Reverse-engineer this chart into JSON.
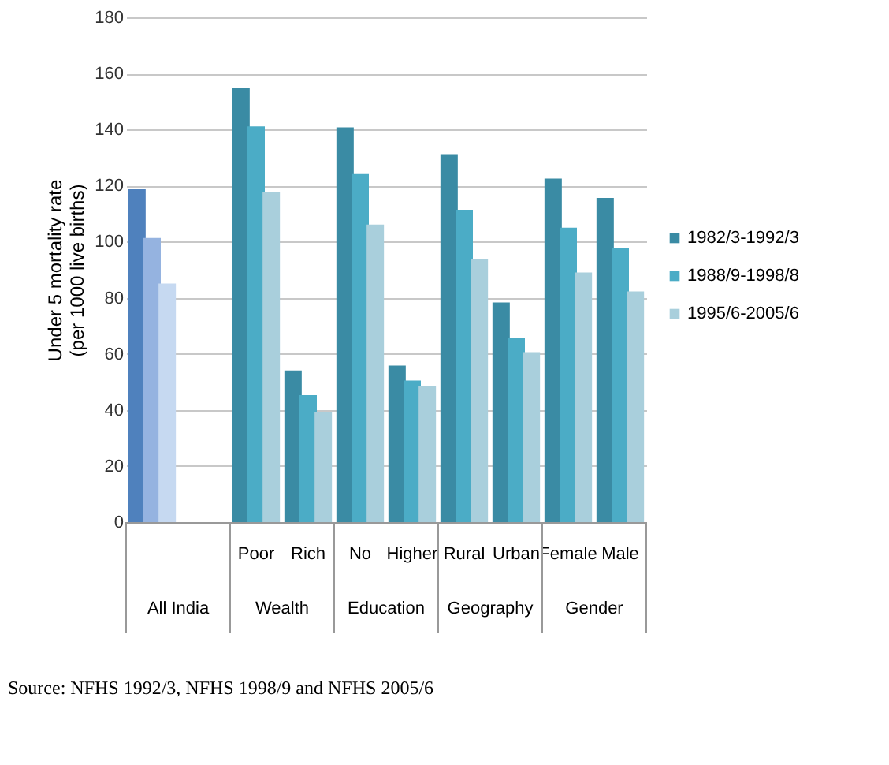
{
  "chart_data": {
    "type": "bar",
    "ylabel": "Under 5 mortality rate\n(per 1000 live births)",
    "categories": [
      null,
      null,
      "Poor",
      "Rich",
      "No",
      "Higher",
      "Rural",
      "Urban",
      "Female",
      "Male"
    ],
    "series": [
      {
        "name": "1982/3-1992/3",
        "color": "#3a8ba4",
        "colors": [
          "#4f81bd",
          null,
          "#3a8ba4",
          "#3a8ba4",
          "#3a8ba4",
          "#3a8ba4",
          "#3a8ba4",
          "#3a8ba4",
          "#3a8ba4",
          "#3a8ba4"
        ],
        "values": [
          118.7,
          null,
          154.7,
          54.1,
          140.8,
          55.8,
          131.2,
          78.3,
          122.5,
          115.6
        ]
      },
      {
        "name": "1988/9-1998/8",
        "color": "#4bacc6",
        "colors": [
          "#95b3e0",
          null,
          "#4bacc6",
          "#4bacc6",
          "#4bacc6",
          "#4bacc6",
          "#4bacc6",
          "#4bacc6",
          "#4bacc6",
          "#4bacc6"
        ],
        "values": [
          101.3,
          null,
          141.1,
          45.3,
          124.4,
          50.5,
          111.4,
          65.5,
          105.0,
          97.9
        ]
      },
      {
        "name": "1995/6-2005/6",
        "color": "#a9cfdc",
        "colors": [
          "#c6d9f1",
          null,
          "#a9cfdc",
          "#a9cfdc",
          "#a9cfdc",
          "#a9cfdc",
          "#a9cfdc",
          "#a9cfdc",
          "#a9cfdc",
          "#a9cfdc"
        ],
        "values": [
          85.1,
          null,
          117.7,
          39.4,
          106.1,
          48.6,
          93.9,
          60.6,
          89.0,
          82.3
        ]
      }
    ],
    "ylim": [
      0,
      180
    ],
    "yticks": [
      0,
      20,
      40,
      60,
      80,
      100,
      120,
      140,
      160,
      180
    ],
    "grid": "y",
    "legend": "right",
    "annotations": [
      "All India",
      "Wealth",
      "Education",
      "Geography",
      "Gender",
      "Source: NFHS 1992/3, NFHS 1998/9 and NFHS 2005/6"
    ]
  }
}
